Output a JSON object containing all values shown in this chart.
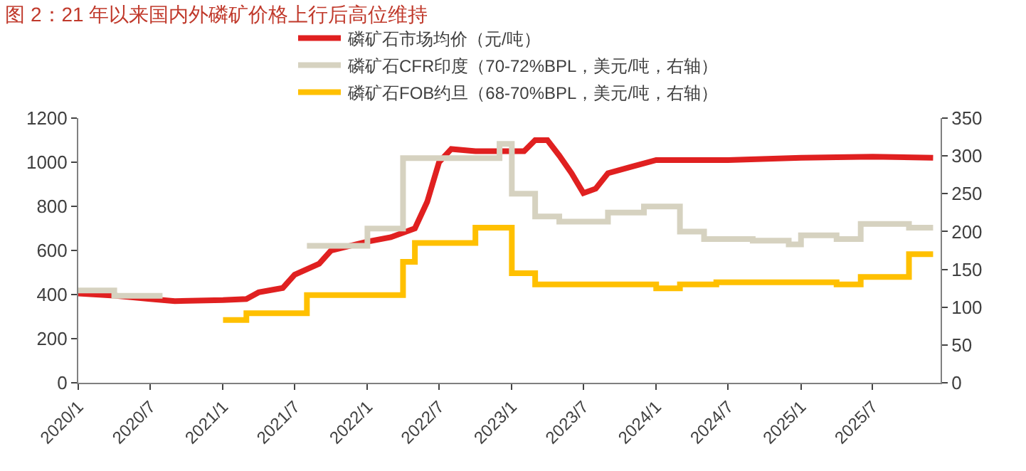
{
  "chart_data": {
    "type": "line",
    "title": "图 2：21 年以来国内外磷矿价格上行后高位维持",
    "xlim": [
      "2020-01-01",
      "2025-12-20"
    ],
    "xticks": [
      {
        "value": "2020-01-01",
        "label": "2020/1"
      },
      {
        "value": "2020-07-01",
        "label": "2020/7"
      },
      {
        "value": "2021-01-01",
        "label": "2021/1"
      },
      {
        "value": "2021-07-01",
        "label": "2021/7"
      },
      {
        "value": "2022-01-01",
        "label": "2022/1"
      },
      {
        "value": "2022-07-01",
        "label": "2022/7"
      },
      {
        "value": "2023-01-01",
        "label": "2023/1"
      },
      {
        "value": "2023-07-01",
        "label": "2023/7"
      },
      {
        "value": "2024-01-01",
        "label": "2024/1"
      },
      {
        "value": "2024-07-01",
        "label": "2024/7"
      },
      {
        "value": "2025-01-01",
        "label": "2025/1"
      },
      {
        "value": "2025-07-01",
        "label": "2025/7"
      }
    ],
    "ylim": [
      0,
      1200
    ],
    "yticks": [
      0,
      200,
      400,
      600,
      800,
      1000,
      1200
    ],
    "y2lim": [
      0,
      350
    ],
    "y2ticks": [
      0,
      50,
      100,
      150,
      200,
      250,
      300,
      350
    ],
    "legend": "top",
    "marker": "none",
    "series": [
      {
        "name": "磷矿石市场均价（元/吨）",
        "color": "#e02020",
        "x": [
          "2020-01",
          "2020-04",
          "2020-07",
          "2020-09",
          "2021-01",
          "2021-03",
          "2021-04",
          "2021-06",
          "2021-07",
          "2021-09",
          "2021-10",
          "2022-01",
          "2022-03",
          "2022-05",
          "2022-06",
          "2022-07",
          "2022-08",
          "2022-10",
          "2023-02",
          "2023-03",
          "2023-04",
          "2023-05",
          "2023-06",
          "2023-07",
          "2023-08",
          "2023-09",
          "2023-11",
          "2024-01",
          "2024-07",
          "2025-01",
          "2025-07",
          "2025-12"
        ],
        "values": [
          405,
          395,
          380,
          370,
          375,
          380,
          410,
          430,
          490,
          540,
          600,
          640,
          660,
          700,
          820,
          1000,
          1060,
          1050,
          1050,
          1100,
          1100,
          1030,
          950,
          860,
          880,
          950,
          980,
          1010,
          1010,
          1020,
          1025,
          1020
        ]
      },
      {
        "name": "磷矿石CFR印度（70-72%BPL，美元/吨，右轴）",
        "color": "#d6d2c0",
        "type": "step",
        "axis": "y2",
        "x": [
          "2020-01",
          "2020-04",
          "2020-08",
          "2020-09",
          "2021-08",
          "2022-01",
          "2022-04",
          "2022-12",
          "2023-01",
          "2023-03",
          "2023-05",
          "2023-09",
          "2023-12",
          "2024-03",
          "2024-05",
          "2024-09",
          "2024-12",
          "2025-01",
          "2025-04",
          "2025-06",
          "2025-10",
          "2025-12"
        ],
        "values": [
          122,
          115,
          115,
          null,
          181,
          204,
          297,
          316,
          250,
          220,
          213,
          225,
          233,
          200,
          190,
          188,
          183,
          195,
          190,
          210,
          205,
          205
        ]
      },
      {
        "name": "磷矿石FOB约旦（68-70%BPL，美元/吨，右轴）",
        "color": "#ffc000",
        "type": "step",
        "axis": "y2",
        "x": [
          "2021-01",
          "2021-03",
          "2021-08",
          "2022-04",
          "2022-05",
          "2022-10",
          "2023-01",
          "2023-03",
          "2024-01",
          "2024-03",
          "2024-06",
          "2025-04",
          "2025-06",
          "2025-10",
          "2025-12"
        ],
        "values": [
          83,
          92,
          116,
          160,
          185,
          205,
          145,
          130,
          125,
          130,
          133,
          130,
          140,
          170,
          170
        ]
      }
    ]
  }
}
